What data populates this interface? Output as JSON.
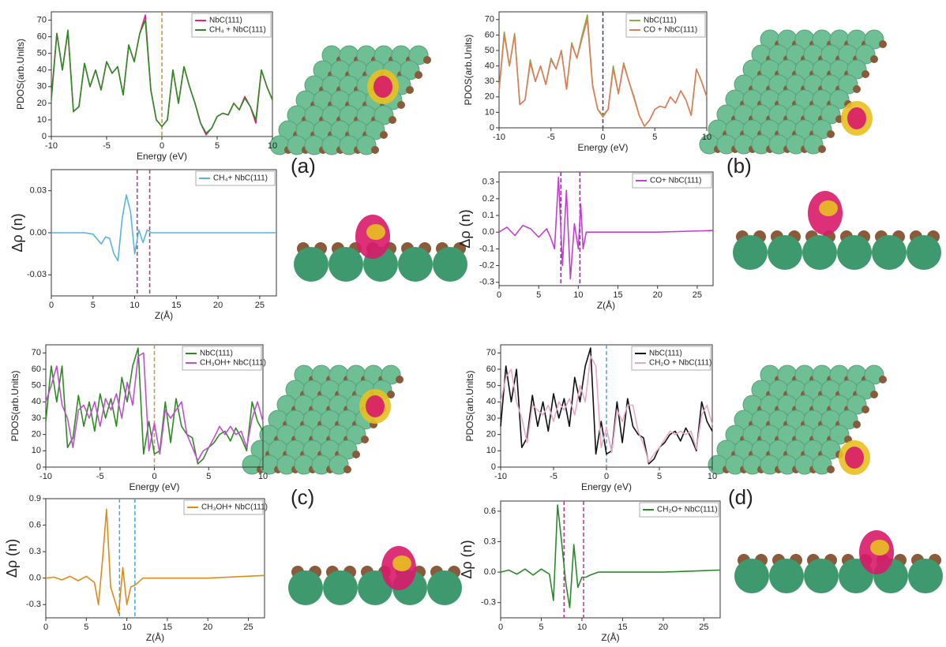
{
  "panel_labels": [
    "(a)",
    "(b)",
    "(c)",
    "(d)"
  ],
  "chart_data": [
    {
      "type": "line",
      "xlabel": "Energy (eV)",
      "ylabel": "PDOS(arb.Units)",
      "legend": "upper right",
      "xlim": [
        -10,
        10
      ],
      "xticks": [
        -10,
        -5,
        0,
        5,
        10
      ],
      "ylim": [
        0,
        75
      ],
      "yticks": [
        0,
        10,
        20,
        30,
        40,
        50,
        60,
        70
      ],
      "vlines": [
        {
          "x": 0,
          "color": "#e08a2a"
        }
      ],
      "x": [
        -10,
        -9.5,
        -9,
        -8.5,
        -8,
        -7.5,
        -7,
        -6.5,
        -6,
        -5.5,
        -5,
        -4.5,
        -4,
        -3.5,
        -3,
        -2.5,
        -2,
        -1.5,
        -1,
        -0.5,
        0,
        0.5,
        1,
        1.5,
        2,
        2.5,
        3,
        3.5,
        4,
        4.5,
        5,
        5.5,
        6,
        6.5,
        7,
        7.5,
        8,
        8.5,
        9,
        9.5,
        10
      ],
      "series": [
        {
          "name": "NbC(111)",
          "color": "#e0218a",
          "values": [
            24,
            62,
            40,
            63,
            15,
            18,
            44,
            30,
            40,
            28,
            45,
            38,
            42,
            25,
            55,
            45,
            62,
            73,
            28,
            10,
            6,
            10,
            40,
            20,
            42,
            30,
            20,
            8,
            1,
            5,
            12,
            14,
            13,
            20,
            16,
            24,
            18,
            8,
            40,
            30,
            22
          ]
        },
        {
          "name": "CH₄ + NbC(111)",
          "color": "#2e8b22",
          "values": [
            22,
            62,
            40,
            64,
            15,
            18,
            44,
            30,
            40,
            28,
            45,
            38,
            42,
            25,
            55,
            45,
            62,
            70,
            28,
            10,
            6,
            10,
            40,
            20,
            42,
            30,
            20,
            8,
            2,
            5,
            12,
            14,
            13,
            20,
            16,
            23,
            18,
            10,
            40,
            30,
            22
          ]
        }
      ]
    },
    {
      "type": "line",
      "xlabel": "Z(Å)",
      "ylabel": "Δρ (n)",
      "legend": "upper right",
      "xlim": [
        0,
        27
      ],
      "xticks": [
        0,
        5,
        10,
        15,
        20,
        25
      ],
      "ylim": [
        -0.045,
        0.045
      ],
      "yticks": [
        -0.03,
        {
          "value": 0,
          "label": "0.00"
        },
        0.03
      ],
      "vlines": [
        {
          "x": 10.3,
          "color": "#c0308a"
        },
        {
          "x": 11.8,
          "color": "#c0308a"
        }
      ],
      "x": [
        0,
        2,
        4,
        5,
        6,
        6.5,
        7,
        7.5,
        8,
        8.5,
        9,
        9.5,
        10,
        10.5,
        11,
        11.5,
        12,
        13,
        15,
        20,
        27
      ],
      "series": [
        {
          "name": "CH₄+ NbC(111)",
          "color": "#5ab4dc",
          "values": [
            0,
            0,
            0,
            -0.001,
            -0.008,
            -0.003,
            -0.004,
            -0.015,
            -0.02,
            0.01,
            0.027,
            0.015,
            -0.015,
            0.002,
            -0.007,
            0.002,
            0,
            0,
            0,
            0,
            0
          ]
        }
      ]
    },
    {
      "type": "line",
      "xlabel": "Energy (eV)",
      "ylabel": "PDOS(arb.Units)",
      "legend": "upper right",
      "xlim": [
        -10,
        10
      ],
      "xticks": [
        -10,
        -5,
        0,
        5,
        10
      ],
      "ylim": [
        0,
        75
      ],
      "yticks": [
        0,
        10,
        20,
        30,
        40,
        50,
        60,
        70
      ],
      "vlines": [
        {
          "x": 0,
          "color": "#5a2a8a"
        }
      ],
      "x": [
        -10,
        -9.5,
        -9,
        -8.5,
        -8,
        -7.5,
        -7,
        -6.5,
        -6,
        -5.5,
        -5,
        -4.5,
        -4,
        -3.5,
        -3,
        -2.5,
        -2,
        -1.5,
        -1,
        -0.5,
        0,
        0.5,
        1,
        1.5,
        2,
        2.5,
        3,
        3.5,
        4,
        4.5,
        5,
        5.5,
        6,
        6.5,
        7,
        7.5,
        8,
        8.5,
        9,
        9.5,
        10
      ],
      "series": [
        {
          "name": "NbC(111)",
          "color": "#7cb342",
          "values": [
            25,
            62,
            40,
            61,
            15,
            18,
            44,
            30,
            40,
            28,
            45,
            38,
            50,
            25,
            55,
            45,
            60,
            73,
            28,
            12,
            8,
            12,
            40,
            22,
            42,
            30,
            20,
            8,
            1,
            5,
            12,
            14,
            13,
            20,
            16,
            24,
            18,
            8,
            38,
            30,
            20
          ]
        },
        {
          "name": "CO + NbC(111)",
          "color": "#e07b5a",
          "values": [
            24,
            60,
            40,
            60,
            15,
            18,
            42,
            30,
            40,
            28,
            44,
            38,
            50,
            25,
            54,
            45,
            58,
            70,
            27,
            12,
            7,
            12,
            38,
            22,
            41,
            30,
            19,
            8,
            1,
            5,
            12,
            14,
            13,
            20,
            16,
            24,
            18,
            8,
            38,
            30,
            20
          ]
        }
      ]
    },
    {
      "type": "line",
      "xlabel": "Z(Å)",
      "ylabel": "Δρ (n)",
      "legend": "upper right",
      "xlim": [
        0,
        27
      ],
      "xticks": [
        0,
        5,
        10,
        15,
        20,
        25
      ],
      "ylim": [
        -0.32,
        0.36
      ],
      "yticks": [
        -0.3,
        -0.2,
        -0.1,
        {
          "value": 0,
          "label": "0.0"
        },
        0.1,
        0.2,
        0.3
      ],
      "vlines": [
        {
          "x": 7.8,
          "color": "#8a2a9a"
        },
        {
          "x": 10.2,
          "color": "#8a2a9a"
        }
      ],
      "x": [
        0,
        1,
        2,
        3,
        4,
        5,
        6,
        6.5,
        7,
        7.5,
        8,
        8.5,
        9,
        9.5,
        10,
        10.3,
        10.6,
        11,
        12,
        15,
        20,
        27
      ],
      "series": [
        {
          "name": "CO+ NbC(111)",
          "color": "#c040d0",
          "values": [
            0,
            0.03,
            -0.02,
            0.04,
            0.02,
            -0.03,
            0.02,
            -0.03,
            -0.1,
            0.33,
            -0.2,
            0.25,
            -0.28,
            0.05,
            -0.1,
            0.17,
            -0.1,
            0,
            0,
            0,
            0,
            0.01
          ]
        }
      ]
    },
    {
      "type": "line",
      "xlabel": "Energy (eV)",
      "ylabel": "PDOS(arb.Units)",
      "legend": "upper right",
      "xlim": [
        -10,
        10
      ],
      "xticks": [
        -10,
        -5,
        0,
        5,
        10
      ],
      "ylim": [
        0,
        75
      ],
      "yticks": [
        0,
        10,
        20,
        30,
        40,
        50,
        60,
        70
      ],
      "vlines": [
        {
          "x": 0,
          "color": "#e08a2a"
        }
      ],
      "x": [
        -10,
        -9.5,
        -9,
        -8.5,
        -8,
        -7.5,
        -7,
        -6.5,
        -6,
        -5.5,
        -5,
        -4.5,
        -4,
        -3.5,
        -3,
        -2.5,
        -2,
        -1.5,
        -1,
        -0.5,
        0,
        0.5,
        1,
        1.5,
        2,
        2.5,
        3,
        3.5,
        4,
        4.5,
        5,
        5.5,
        6,
        6.5,
        7,
        7.5,
        8,
        8.5,
        9,
        9.5,
        10
      ],
      "series": [
        {
          "name": "NbC(111)",
          "color": "#2e8b22",
          "values": [
            28,
            62,
            40,
            62,
            12,
            18,
            44,
            25,
            40,
            22,
            45,
            30,
            42,
            25,
            55,
            40,
            62,
            73,
            8,
            28,
            8,
            10,
            40,
            15,
            42,
            25,
            20,
            18,
            2,
            5,
            12,
            15,
            20,
            22,
            16,
            24,
            18,
            10,
            40,
            28,
            22
          ]
        },
        {
          "name": "CH₃OH+ NbC(111)",
          "color": "#c050d0",
          "values": [
            40,
            50,
            62,
            38,
            30,
            12,
            35,
            38,
            30,
            40,
            25,
            42,
            35,
            45,
            30,
            52,
            38,
            68,
            70,
            10,
            27,
            8,
            35,
            30,
            35,
            40,
            20,
            12,
            4,
            10,
            12,
            18,
            25,
            20,
            25,
            20,
            22,
            12,
            30,
            40,
            28
          ]
        }
      ]
    },
    {
      "type": "line",
      "xlabel": "Z(Å)",
      "ylabel": "Δρ (n)",
      "legend": "upper right",
      "xlim": [
        0,
        27
      ],
      "xticks": [
        0,
        5,
        10,
        15,
        20,
        25
      ],
      "ylim": [
        -0.45,
        0.9
      ],
      "yticks": [
        -0.3,
        {
          "value": 0,
          "label": "0.0"
        },
        0.3,
        0.6,
        0.9
      ],
      "vlines": [
        {
          "x": 9.1,
          "color": "#4aa8d8"
        },
        {
          "x": 11,
          "color": "#4aa8d8"
        }
      ],
      "x": [
        0,
        1,
        2,
        3,
        4,
        5,
        6,
        6.5,
        7,
        7.5,
        8,
        8.5,
        9,
        9.5,
        10,
        10.5,
        11,
        12,
        15,
        20,
        27
      ],
      "series": [
        {
          "name": "CH₃OH+ NbC(111)",
          "color": "#e08a1a",
          "values": [
            0,
            0.01,
            -0.02,
            0.02,
            -0.03,
            0.02,
            -0.05,
            -0.3,
            0.2,
            0.78,
            -0.1,
            -0.25,
            -0.4,
            0.12,
            -0.3,
            -0.1,
            -0.08,
            0,
            0,
            0,
            0.03
          ]
        }
      ]
    },
    {
      "type": "line",
      "xlabel": "Energy (eV)",
      "ylabel": "PDOS(arb.Units)",
      "legend": "upper right",
      "xlim": [
        -10,
        10
      ],
      "xticks": [
        -10,
        -5,
        0,
        5,
        10
      ],
      "ylim": [
        0,
        75
      ],
      "yticks": [
        0,
        10,
        20,
        30,
        40,
        50,
        60,
        70
      ],
      "vlines": [
        {
          "x": 0,
          "color": "#4aa8d8"
        }
      ],
      "x": [
        -10,
        -9.5,
        -9,
        -8.5,
        -8,
        -7.5,
        -7,
        -6.5,
        -6,
        -5.5,
        -5,
        -4.5,
        -4,
        -3.5,
        -3,
        -2.5,
        -2,
        -1.5,
        -1,
        -0.5,
        0,
        0.5,
        1,
        1.5,
        2,
        2.5,
        3,
        3.5,
        4,
        4.5,
        5,
        5.5,
        6,
        6.5,
        7,
        7.5,
        8,
        8.5,
        9,
        9.5,
        10
      ],
      "series": [
        {
          "name": "NbC(111)",
          "color": "#111111",
          "values": [
            25,
            62,
            40,
            60,
            12,
            18,
            44,
            25,
            40,
            22,
            45,
            30,
            42,
            25,
            55,
            40,
            62,
            73,
            8,
            28,
            8,
            10,
            40,
            15,
            42,
            25,
            20,
            18,
            2,
            5,
            12,
            15,
            20,
            22,
            16,
            24,
            18,
            10,
            40,
            28,
            22
          ]
        },
        {
          "name": "CH₂O + NbC(111)",
          "color": "#e8a8c8",
          "values": [
            40,
            55,
            60,
            40,
            30,
            15,
            38,
            35,
            32,
            38,
            28,
            40,
            35,
            42,
            32,
            50,
            40,
            68,
            62,
            12,
            24,
            9,
            35,
            28,
            38,
            38,
            22,
            14,
            3,
            8,
            12,
            17,
            22,
            20,
            22,
            20,
            22,
            11,
            32,
            38,
            26
          ]
        }
      ]
    },
    {
      "type": "line",
      "xlabel": "Z(Å)",
      "ylabel": "Δρ (n)",
      "legend": "upper right",
      "xlim": [
        0,
        27
      ],
      "xticks": [
        0,
        5,
        10,
        15,
        20,
        25
      ],
      "ylim": [
        -0.45,
        0.7
      ],
      "yticks": [
        -0.3,
        {
          "value": 0,
          "label": "0.0"
        },
        0.3,
        0.6
      ],
      "vlines": [
        {
          "x": 7.8,
          "color": "#c0308a"
        },
        {
          "x": 10.2,
          "color": "#c0308a"
        }
      ],
      "x": [
        0,
        1,
        2,
        3,
        4,
        5,
        6,
        6.5,
        7,
        7.5,
        8,
        8.5,
        9,
        9.5,
        10,
        10.5,
        11,
        12,
        15,
        20,
        27
      ],
      "series": [
        {
          "name": "CH₂O+ NbC(111)",
          "color": "#2a8a2a",
          "values": [
            0,
            0.02,
            -0.02,
            0.03,
            -0.03,
            0.03,
            -0.02,
            -0.28,
            0.66,
            0.3,
            -0.1,
            -0.35,
            0.27,
            -0.15,
            -0.05,
            -0.05,
            -0.03,
            0,
            0,
            0,
            0.02
          ]
        }
      ]
    }
  ]
}
